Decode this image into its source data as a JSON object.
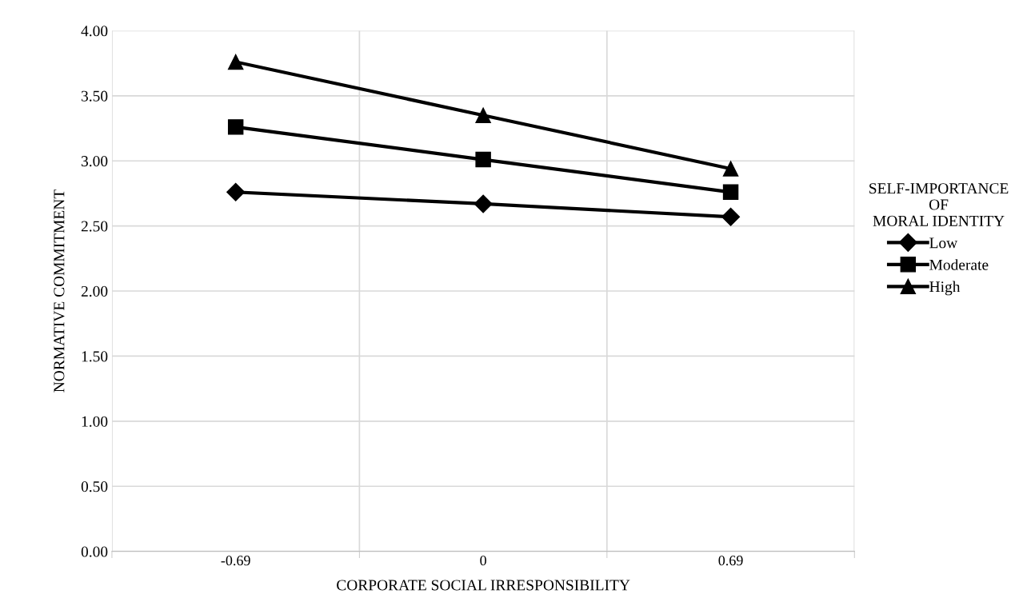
{
  "chart_data": {
    "type": "line",
    "xlabel": "CORPORATE SOCIAL IRRESPONSIBILITY",
    "ylabel": "NORMATIVE COMMITMENT",
    "legend_title": "SELF-IMPORTANCE\nOF\nMORAL IDENTITY",
    "categories": [
      "-0.69",
      "0",
      "0.69"
    ],
    "series": [
      {
        "name": "Low",
        "color": "#000000",
        "marker": "diamond",
        "values": [
          2.76,
          2.67,
          2.57
        ]
      },
      {
        "name": "Moderate",
        "color": "#000000",
        "marker": "square",
        "values": [
          3.26,
          3.01,
          2.76
        ]
      },
      {
        "name": "High",
        "color": "#000000",
        "marker": "triangle",
        "values": [
          3.76,
          3.35,
          2.94
        ]
      }
    ],
    "ylim": [
      0,
      4
    ],
    "yticks": [
      {
        "value": 0,
        "label": "0.00"
      },
      {
        "value": 0.5,
        "label": "0.50"
      },
      {
        "value": 1,
        "label": "1.00"
      },
      {
        "value": 1.5,
        "label": "1.50"
      },
      {
        "value": 2,
        "label": "2.00"
      },
      {
        "value": 2.5,
        "label": "2.50"
      },
      {
        "value": 3,
        "label": "3.00"
      },
      {
        "value": 3.5,
        "label": "3.50"
      },
      {
        "value": 4,
        "label": "4.00"
      }
    ],
    "grid": true,
    "legend": "right",
    "line_style": "solid"
  }
}
